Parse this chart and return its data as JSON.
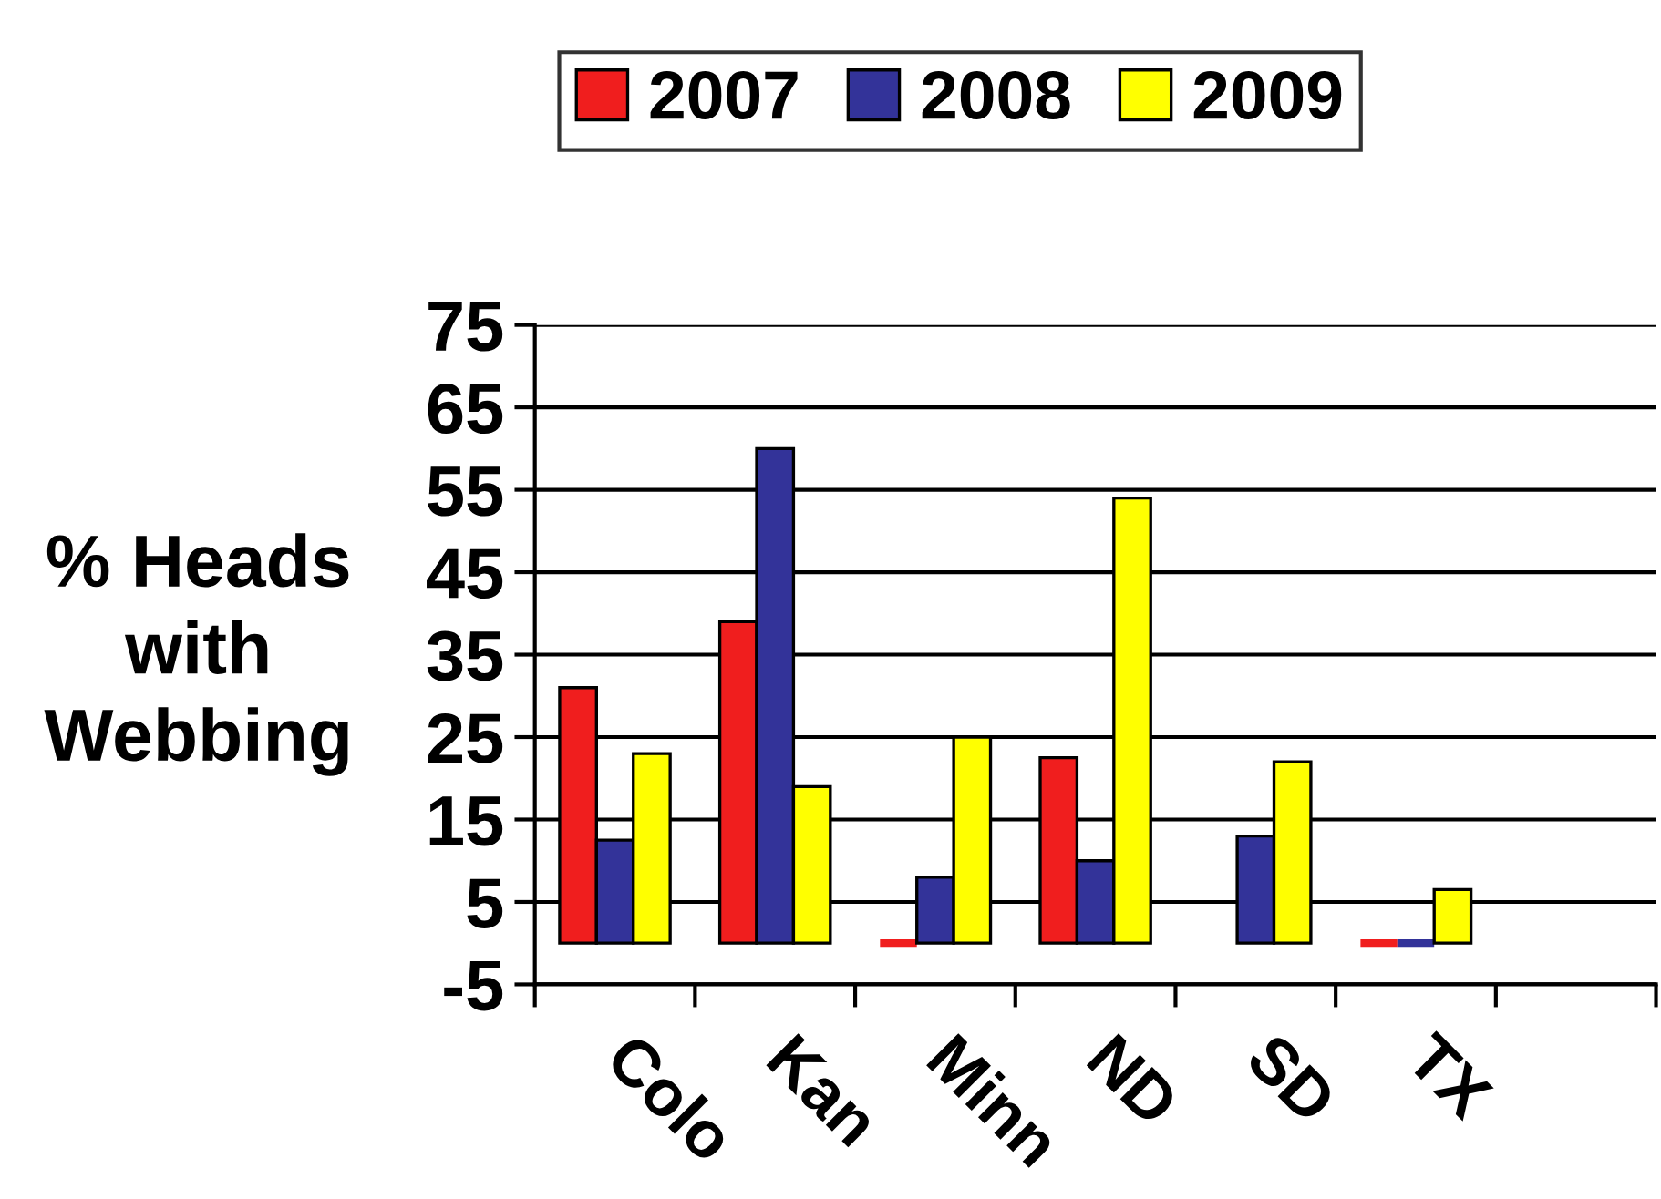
{
  "chart_data": {
    "type": "bar",
    "ylabel": "% Heads\nwith\nWebbing",
    "categories": [
      "Colo",
      "Kan",
      "Minn",
      "ND",
      "SD",
      "TX",
      null
    ],
    "series": [
      {
        "name": "2007",
        "color": "#f01e1e",
        "values": [
          31,
          39,
          0,
          22.5,
          null,
          0,
          null
        ]
      },
      {
        "name": "2008",
        "color": "#333399",
        "values": [
          12.5,
          60,
          8,
          10,
          13,
          0,
          null
        ]
      },
      {
        "name": "2009",
        "color": "#ffff00",
        "values": [
          23,
          19,
          25,
          54,
          22,
          6.5,
          null
        ]
      }
    ],
    "ylim": [
      -5,
      75
    ],
    "yticks": [
      -5,
      5,
      15,
      25,
      35,
      45,
      55,
      65,
      75
    ],
    "grid": "y",
    "legend": "top"
  }
}
